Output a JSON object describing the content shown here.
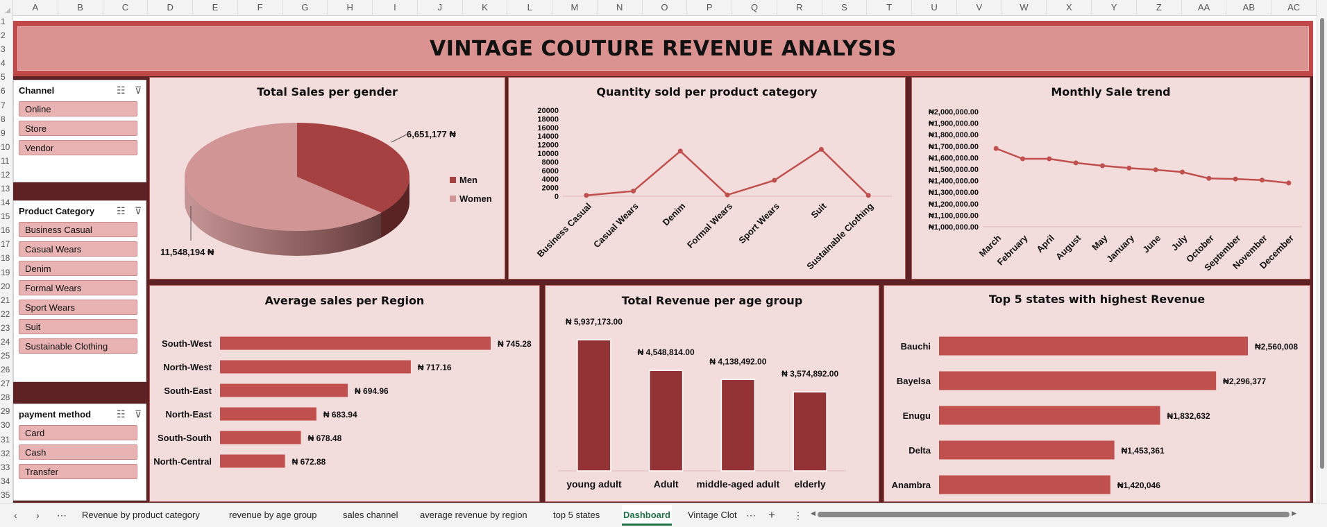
{
  "columns": [
    "A",
    "B",
    "C",
    "D",
    "E",
    "F",
    "G",
    "H",
    "I",
    "J",
    "K",
    "L",
    "M",
    "N",
    "O",
    "P",
    "Q",
    "R",
    "S",
    "T",
    "U",
    "V",
    "W",
    "X",
    "Y",
    "Z",
    "AA",
    "AB",
    "AC"
  ],
  "rows": [
    "1",
    "2",
    "3",
    "4",
    "5",
    "6",
    "7",
    "8",
    "9",
    "10",
    "11",
    "12",
    "13",
    "14",
    "15",
    "16",
    "17",
    "18",
    "19",
    "20",
    "21",
    "22",
    "23",
    "24",
    "25",
    "26",
    "27",
    "28",
    "29",
    "30",
    "31",
    "32",
    "33",
    "34",
    "35"
  ],
  "banner": {
    "title": "VINTAGE COUTURE REVENUE ANALYSIS"
  },
  "slicers": {
    "channel": {
      "header": "Channel",
      "items": [
        "Online",
        "Store",
        "Vendor"
      ]
    },
    "category": {
      "header": "Product Category",
      "items": [
        "Business Casual",
        "Casual Wears",
        "Denim",
        "Formal Wears",
        "Sport Wears",
        "Suit",
        "Sustainable Clothing"
      ]
    },
    "payment": {
      "header": "payment method",
      "items": [
        "Card",
        "Cash",
        "Transfer"
      ]
    }
  },
  "tabs": {
    "items": [
      "Revenue by product category",
      "revenue by age group",
      "sales channel",
      "average revenue by region",
      "top 5 states",
      "Dashboard",
      "Vintage Clot"
    ],
    "active": "Dashboard",
    "more": "⋯",
    "add": "+",
    "menu": "⋮"
  },
  "colors": {
    "dark": "#5e2124",
    "accent": "#c14848",
    "bar": "#c0504d",
    "barDark": "#933336",
    "panel": "#f2dcdc"
  },
  "chart_data": [
    {
      "id": "gender",
      "type": "pie",
      "title": "Total Sales per gender",
      "slices": [
        {
          "label": "Men",
          "value": 6651177,
          "display": "6,651,177 ₦",
          "color": "#a64141"
        },
        {
          "label": "Women",
          "value": 11548194,
          "display": "11,548,194 ₦",
          "color": "#d09594"
        }
      ]
    },
    {
      "id": "quantity",
      "type": "line",
      "title": "Quantity sold per product category",
      "categories": [
        "Business Casual",
        "Casual Wears",
        "Denim",
        "Formal Wears",
        "Sport Wears",
        "Suit",
        "Sustainable Clothing"
      ],
      "values": [
        200,
        1200,
        10500,
        300,
        3700,
        10900,
        200
      ],
      "ylim": [
        0,
        20000
      ],
      "yticks": [
        "20000",
        "18000",
        "16000",
        "14000",
        "12000",
        "10000",
        "8000",
        "6000",
        "4000",
        "2000",
        "0"
      ]
    },
    {
      "id": "monthly",
      "type": "line",
      "title": "Monthly Sale trend",
      "categories": [
        "March",
        "February",
        "April",
        "August",
        "May",
        "January",
        "June",
        "July",
        "October",
        "September",
        "November",
        "December"
      ],
      "values": [
        1680000,
        1590000,
        1590000,
        1555000,
        1530000,
        1510000,
        1495000,
        1475000,
        1420000,
        1415000,
        1405000,
        1380000
      ],
      "ylim": [
        1000000,
        2000000
      ],
      "yticks": [
        "₦2,000,000.00",
        "₦1,900,000.00",
        "₦1,800,000.00",
        "₦1,700,000.00",
        "₦1,600,000.00",
        "₦1,500,000.00",
        "₦1,400,000.00",
        "₦1,300,000.00",
        "₦1,200,000.00",
        "₦1,100,000.00",
        "₦1,000,000.00"
      ]
    },
    {
      "id": "region",
      "type": "bar",
      "title": "Average sales per Region",
      "categories": [
        "South-West",
        "North-West",
        "South-East",
        "North-East",
        "South-South",
        "North-Central"
      ],
      "values": [
        745.28,
        717.16,
        694.96,
        683.94,
        678.48,
        672.88
      ],
      "labels": [
        "₦ 745.28",
        "₦ 717.16",
        "₦ 694.96",
        "₦ 683.94",
        "₦ 678.48",
        "₦ 672.88"
      ]
    },
    {
      "id": "age",
      "type": "bar",
      "title": "Total Revenue per age group",
      "categories": [
        "young adult",
        "Adult",
        "middle-aged adult",
        "elderly"
      ],
      "values": [
        5937173,
        4548814,
        4138492,
        3574892
      ],
      "labels": [
        "₦ 5,937,173.00",
        "₦ 4,548,814.00",
        "₦ 4,138,492.00",
        "₦ 3,574,892.00"
      ]
    },
    {
      "id": "states",
      "type": "bar",
      "title": "Top 5 states with highest Revenue",
      "categories": [
        "Bauchi",
        "Bayelsa",
        "Enugu",
        "Delta",
        "Anambra"
      ],
      "values": [
        2560008,
        2296377,
        1832632,
        1453361,
        1420046
      ],
      "labels": [
        "₦2,560,008",
        "₦2,296,377",
        "₦1,832,632",
        "₦1,453,361",
        "₦1,420,046"
      ]
    }
  ]
}
